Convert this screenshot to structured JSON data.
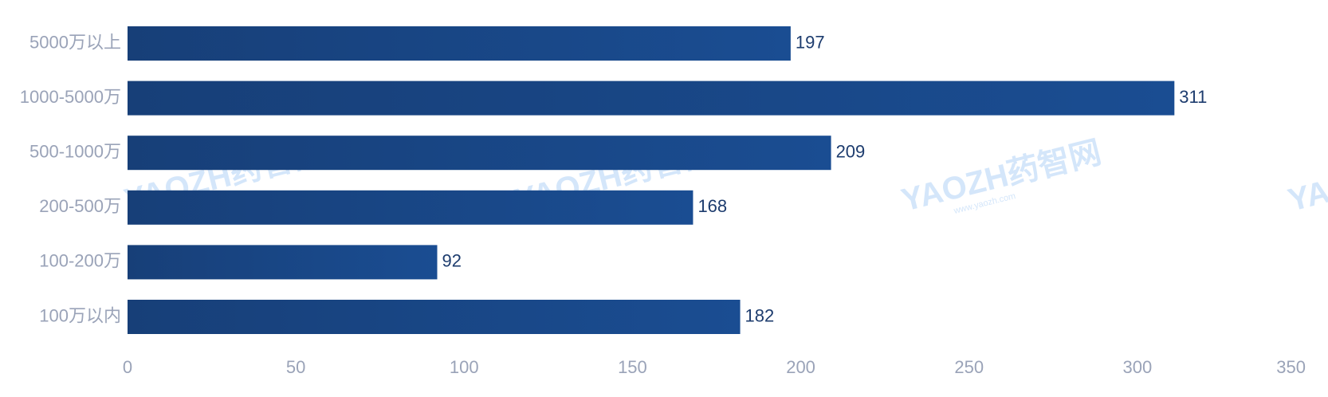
{
  "watermark": {
    "text": "YAOZH药智网",
    "sub": "www.yaozh.com"
  },
  "chart_data": {
    "type": "bar",
    "orientation": "horizontal",
    "categories": [
      "5000万以上",
      "1000-5000万",
      "500-1000万",
      "200-500万",
      "100-200万",
      "100万以内"
    ],
    "values": [
      197,
      311,
      209,
      168,
      92,
      182
    ],
    "xlim": [
      0,
      350
    ],
    "x_ticks": [
      0,
      50,
      100,
      150,
      200,
      250,
      300,
      350
    ],
    "title": "",
    "xlabel": "",
    "ylabel": "",
    "grid": false,
    "colors": {
      "bar_start": "#173f78",
      "bar_end": "#1a4d92",
      "value_label": "#1d3c6e",
      "axis_label": "#9aa3b8",
      "watermark": "#d4e6fa"
    }
  }
}
